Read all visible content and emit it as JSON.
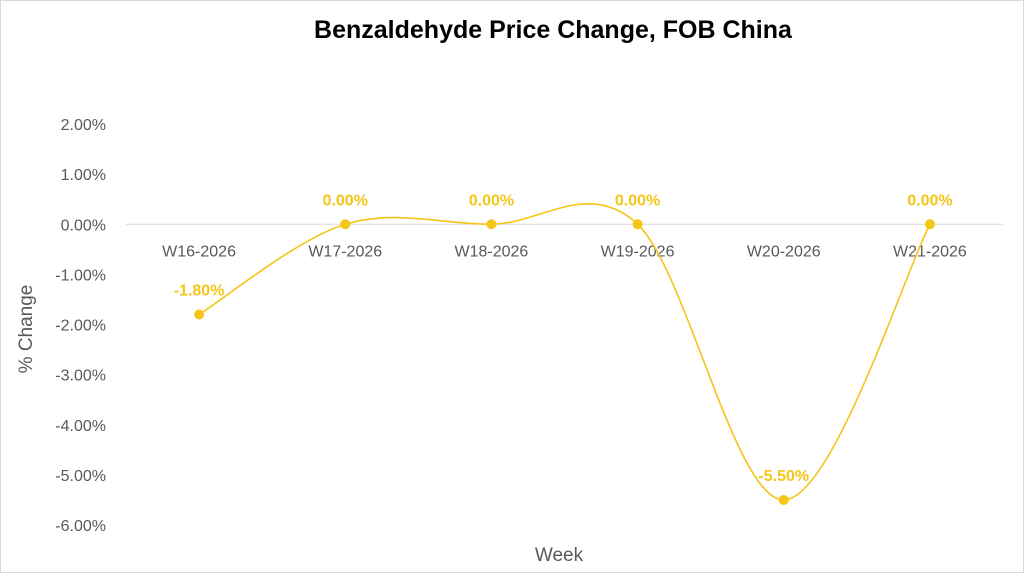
{
  "chart_data": {
    "type": "line",
    "title": "Benzaldehyde Price Change, FOB China",
    "xlabel": "Week",
    "ylabel": "% Change",
    "categories": [
      "W16-2026",
      "W17-2026",
      "W18-2026",
      "W19-2026",
      "W20-2026",
      "W21-2026"
    ],
    "series": [
      {
        "values": [
          -1.8,
          0.0,
          0.0,
          0.0,
          -5.5,
          0.0
        ],
        "color": "#f5c518"
      }
    ],
    "data_labels": [
      "-1.80%",
      "0.00%",
      "0.00%",
      "0.00%",
      "-5.50%",
      "0.00%"
    ],
    "ylim": [
      -6,
      2
    ],
    "y_ticks": [
      2,
      1,
      0,
      -1,
      -2,
      -3,
      -4,
      -5,
      -6
    ],
    "y_tick_labels": [
      "2.00%",
      "1.00%",
      "0.00%",
      "-1.00%",
      "-2.00%",
      "-3.00%",
      "-4.00%",
      "-5.00%",
      "-6.00%"
    ],
    "smooth": true,
    "grid": false,
    "legend": "none"
  }
}
